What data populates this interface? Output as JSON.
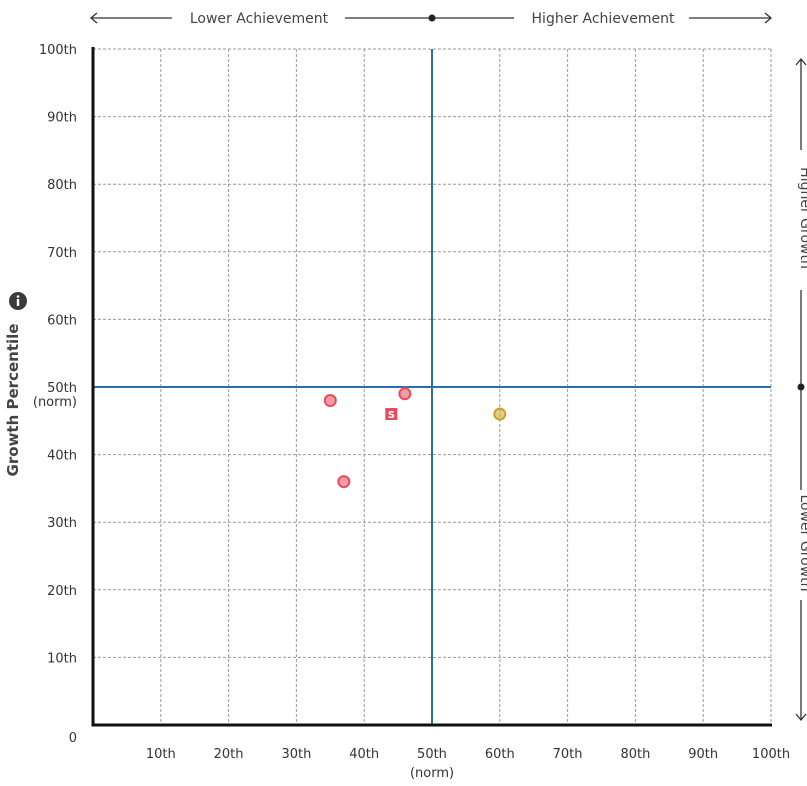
{
  "chart_data": {
    "type": "scatter",
    "title": "",
    "xlabel": "",
    "ylabel": "Growth Percentile",
    "xlim": [
      0,
      100
    ],
    "ylim": [
      0,
      100
    ],
    "x_ticks": [
      10,
      20,
      30,
      40,
      50,
      60,
      70,
      80,
      90,
      100
    ],
    "y_ticks": [
      10,
      20,
      30,
      40,
      50,
      60,
      70,
      80,
      90,
      100
    ],
    "x_tick_labels": [
      "10th",
      "20th",
      "30th",
      "40th",
      "50th",
      "60th",
      "70th",
      "80th",
      "90th",
      "100th"
    ],
    "y_tick_labels": [
      "10th",
      "20th",
      "30th",
      "40th",
      "50th",
      "60th",
      "70th",
      "80th",
      "90th",
      "100th"
    ],
    "origin_label": "0",
    "norm_label": "(norm)",
    "grid": true,
    "reference_lines": {
      "x": 50,
      "y": 50,
      "color": "#2a6ea6"
    },
    "band_labels": {
      "top_left": "Lower Achievement",
      "top_right": "Higher Achievement",
      "right_top": "Higher Growth",
      "right_bottom": "Lower Growth"
    },
    "series": [
      {
        "marker": "circle",
        "color": "#e84c5c",
        "points": [
          {
            "x": 35,
            "y": 48
          },
          {
            "x": 46,
            "y": 49
          },
          {
            "x": 37,
            "y": 36
          }
        ]
      },
      {
        "marker": "square",
        "label": "S",
        "color": "#e84c5c",
        "points": [
          {
            "x": 44,
            "y": 46
          }
        ]
      },
      {
        "marker": "circle",
        "color": "#c9a227",
        "points": [
          {
            "x": 60,
            "y": 46
          }
        ]
      }
    ]
  }
}
